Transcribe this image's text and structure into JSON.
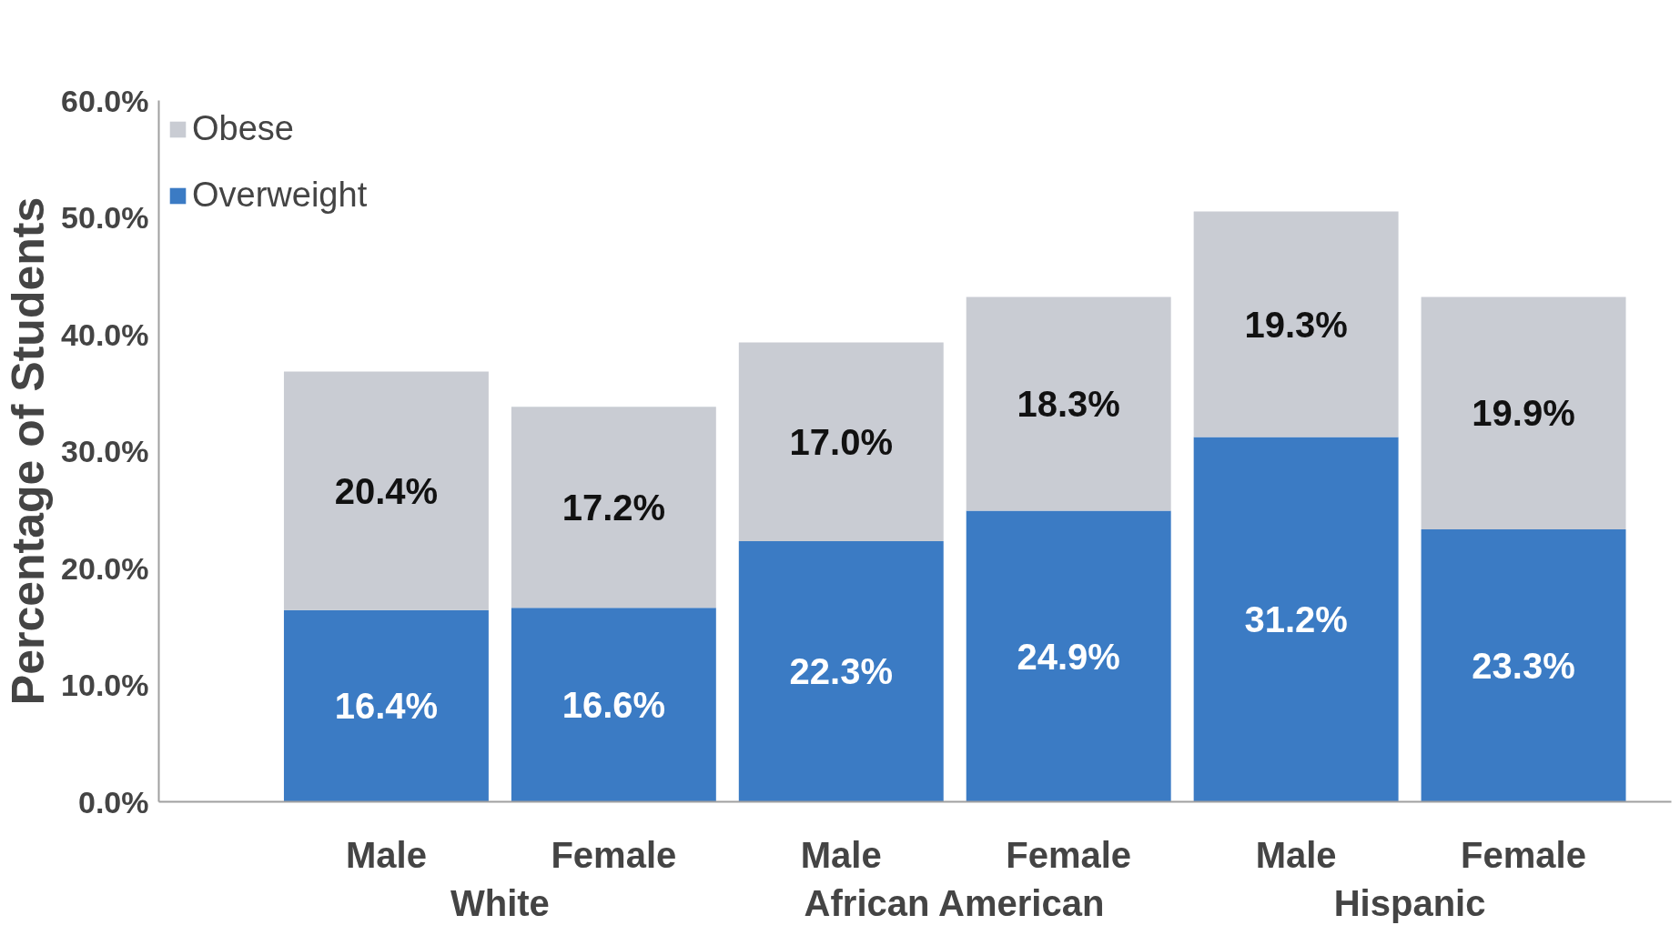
{
  "chart_data": {
    "type": "bar",
    "stacked": true,
    "ylabel": "Percentage of Students",
    "categories": [
      "Male",
      "Female",
      "Male",
      "Female",
      "Male",
      "Female"
    ],
    "series": [
      {
        "name": "Overweight",
        "color": "#3b7bc4",
        "values": [
          16.4,
          16.6,
          22.3,
          24.9,
          31.2,
          23.3
        ]
      },
      {
        "name": "Obese",
        "color": "#c9ccd3",
        "values": [
          20.4,
          17.2,
          17.0,
          18.3,
          19.3,
          19.9
        ]
      }
    ],
    "ylim": [
      0,
      60
    ],
    "yticks": [
      {
        "value": 0,
        "label": "0.0%"
      },
      {
        "value": 10,
        "label": "10.0%"
      },
      {
        "value": 20,
        "label": "20.0%"
      },
      {
        "value": 30,
        "label": "30.0%"
      },
      {
        "value": 40,
        "label": "40.0%"
      },
      {
        "value": 50,
        "label": "50.0%"
      },
      {
        "value": 60,
        "label": "60.0%"
      }
    ],
    "value_labels": [
      [
        "16.4%",
        "16.6%",
        "22.3%",
        "24.9%",
        "31.2%",
        "23.3%"
      ],
      [
        "20.4%",
        "17.2%",
        "17.0%",
        "18.3%",
        "19.3%",
        "19.9%"
      ]
    ],
    "annotations": [
      "White",
      "African American",
      "Hispanic"
    ],
    "grid": false,
    "legend": "top left"
  }
}
